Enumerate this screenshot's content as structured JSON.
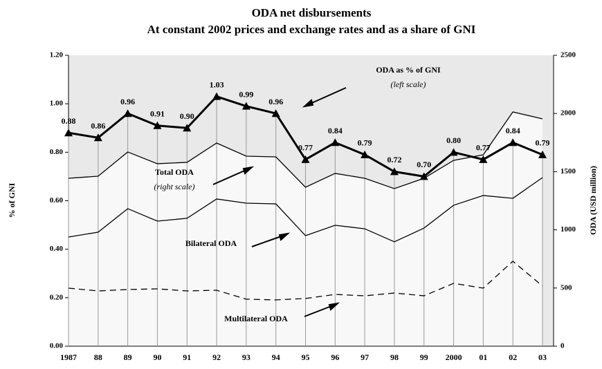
{
  "chart_data": {
    "type": "line",
    "title": "ODA net disbursements",
    "subtitle": "At constant 2002 prices and exchange rates and as a share of GNI",
    "ylabel": "% of GNI",
    "y2label": "ODA (USD million)",
    "categories": [
      "1987",
      "88",
      "89",
      "90",
      "91",
      "92",
      "93",
      "94",
      "95",
      "96",
      "97",
      "98",
      "99",
      "2000",
      "01",
      "02",
      "03"
    ],
    "ylim": [
      0,
      1.2
    ],
    "yticks": [
      {
        "value": 0,
        "label": "0.00"
      },
      {
        "value": 0.2,
        "label": "0.20"
      },
      {
        "value": 0.4,
        "label": "0.40"
      },
      {
        "value": 0.6,
        "label": "0.60"
      },
      {
        "value": 0.8,
        "label": "0.80"
      },
      {
        "value": 1,
        "label": "1.00"
      },
      {
        "value": 1.2,
        "label": "1.20"
      }
    ],
    "y2lim": [
      0,
      2500
    ],
    "y2ticks": [
      0,
      500,
      1000,
      1500,
      2000,
      2500
    ],
    "series": [
      {
        "name": "ODA as % of GNI",
        "color": "#000000",
        "axis": "y",
        "values": [
          0.88,
          0.86,
          0.96,
          0.91,
          0.9,
          1.03,
          0.99,
          0.96,
          0.77,
          0.84,
          0.79,
          0.72,
          0.7,
          0.8,
          0.77,
          0.84,
          0.79
        ],
        "value_labels": [
          "0.88",
          "0.86",
          "0.96",
          "0.91",
          "0.90",
          "1.03",
          "0.99",
          "0.96",
          "0.77",
          "0.84",
          "0.79",
          "0.72",
          "0.70",
          "0.80",
          "0.77",
          "0.84",
          "0.79"
        ]
      },
      {
        "name": "Total ODA",
        "color": "#000000",
        "axis": "y2",
        "values": [
          1443,
          1461,
          1669,
          1568,
          1580,
          1746,
          1633,
          1627,
          1366,
          1485,
          1443,
          1354,
          1443,
          1597,
          1645,
          2013,
          1954
        ]
      },
      {
        "name": "Bilateral ODA",
        "color": "#000000",
        "axis": "y2",
        "values": [
          938,
          980,
          1182,
          1075,
          1099,
          1265,
          1229,
          1223,
          950,
          1039,
          1009,
          897,
          1015,
          1211,
          1295,
          1271,
          1449
        ]
      },
      {
        "name": "Multilateral ODA",
        "color": "#000000",
        "axis": "y2",
        "dashed": true,
        "values": [
          499,
          475,
          487,
          493,
          475,
          481,
          404,
          398,
          410,
          445,
          433,
          457,
          433,
          540,
          499,
          730,
          517
        ]
      }
    ],
    "annotations": [
      "(left scale)",
      "(right scale)"
    ]
  }
}
